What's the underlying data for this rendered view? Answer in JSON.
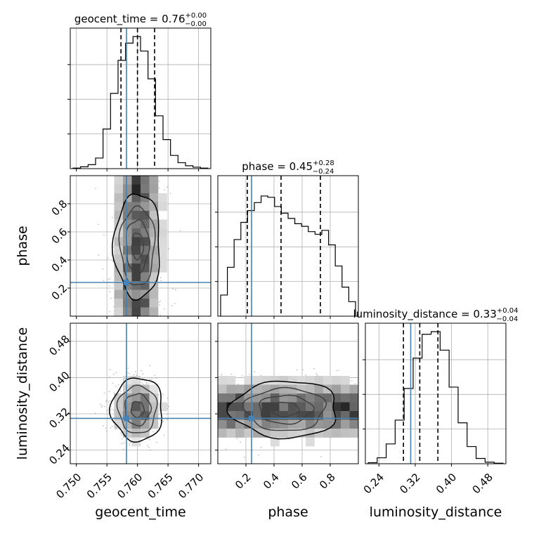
{
  "chart_data": {
    "type": "corner",
    "parameters": [
      {
        "name": "geocent_time",
        "label": "geocent_time",
        "median": "0.76",
        "plus": "+0.00",
        "minus": "−0.00",
        "range": [
          0.749,
          0.772
        ],
        "ticks": [
          0.75,
          0.755,
          0.76,
          0.765,
          0.77
        ],
        "tick_labels": [
          "0.750",
          "0.755",
          "0.760",
          "0.765",
          "0.770"
        ],
        "injection": 0.7582,
        "quantiles": [
          0.7573,
          0.76,
          0.7628
        ]
      },
      {
        "name": "phase",
        "label": "phase",
        "median": "0.45",
        "plus": "+0.28",
        "minus": "−0.24",
        "range": [
          0.0,
          1.0
        ],
        "ticks": [
          0.2,
          0.4,
          0.6,
          0.8
        ],
        "tick_labels": [
          "0.2",
          "0.4",
          "0.6",
          "0.8"
        ],
        "injection": 0.24,
        "quantiles": [
          0.21,
          0.45,
          0.73
        ]
      },
      {
        "name": "luminosity_distance",
        "label": "luminosity_distance",
        "median": "0.33",
        "plus": "+0.04",
        "minus": "−0.04",
        "range": [
          0.21,
          0.52
        ],
        "ticks": [
          0.24,
          0.32,
          0.4,
          0.48
        ],
        "tick_labels": [
          "0.24",
          "0.32",
          "0.40",
          "0.48"
        ],
        "injection": 0.31,
        "quantiles": [
          0.294,
          0.33,
          0.37
        ]
      }
    ],
    "hist": [
      [
        0.004,
        0.014,
        0.03,
        0.08,
        0.3,
        0.57,
        0.82,
        0.95,
        1.0,
        0.89,
        0.68,
        0.4,
        0.22,
        0.1,
        0.045,
        0.022,
        0.011,
        0.004
      ],
      [
        0.16,
        0.37,
        0.58,
        0.71,
        0.8,
        0.86,
        0.91,
        0.9,
        0.83,
        0.78,
        0.74,
        0.7,
        0.68,
        0.64,
        0.62,
        0.65,
        0.54,
        0.38,
        0.22,
        0.11
      ],
      [
        0.008,
        0.045,
        0.15,
        0.33,
        0.57,
        0.8,
        0.98,
        1.0,
        0.86,
        0.58,
        0.31,
        0.13,
        0.04,
        0.012,
        0.004
      ]
    ],
    "grid": true,
    "contour_color": "#000000",
    "truth_color": "#4682b4"
  }
}
